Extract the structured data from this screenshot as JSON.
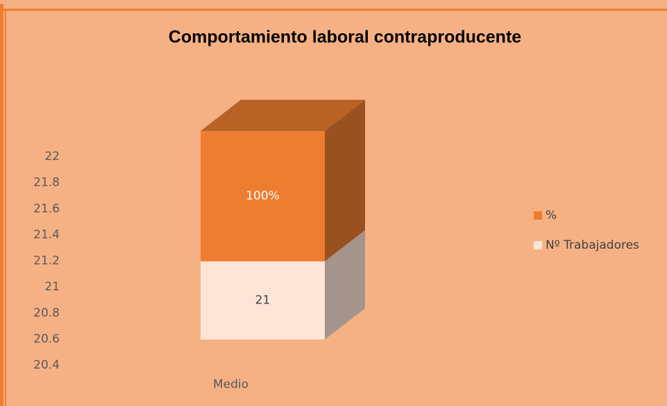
{
  "chart_data": {
    "type": "bar3d_stacked",
    "title": "Comportamiento laboral contraproducente",
    "categories": [
      "Medio"
    ],
    "series": [
      {
        "name": "Nº Trabajadores",
        "color": "#FCE4D6",
        "values": [
          21
        ],
        "value_labels": [
          "21"
        ]
      },
      {
        "name": "%",
        "color": "#ED7D31",
        "values": [
          1
        ],
        "value_labels": [
          "100%"
        ]
      }
    ],
    "ylim": [
      20.4,
      22
    ],
    "yticks": [
      20.4,
      20.6,
      20.8,
      21,
      21.2,
      21.4,
      21.6,
      21.8,
      22
    ],
    "legend": "right"
  }
}
